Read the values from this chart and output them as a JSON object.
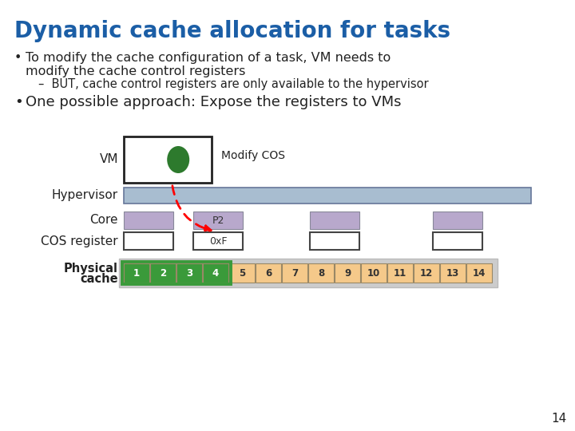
{
  "title": "Dynamic cache allocation for tasks",
  "title_color": "#1B5EA6",
  "title_fontsize": 20,
  "bullet1_line1": "To modify the cache configuration of a task, VM needs to",
  "bullet1_line2": "modify the cache control registers",
  "sub_bullet1": "BUT, cache control registers are only available to the hypervisor",
  "bullet2": "One possible approach: Expose the registers to VMs",
  "text_color": "#222222",
  "bullet_fontsize": 11.5,
  "sub_bullet_fontsize": 10.5,
  "bullet2_fontsize": 13,
  "bg_color": "#ffffff",
  "hypervisor_color": "#A8BDD0",
  "core_color": "#B8A8CC",
  "cos_color": "#ffffff",
  "vm_box_color": "#ffffff",
  "circle_color": "#2D7A2D",
  "physical_cache_color": "#F5C98A",
  "physical_cache_green": "#3A9A3A",
  "gray_bg": "#cccccc",
  "page_number": "14",
  "cache_cells": [
    "1",
    "2",
    "3",
    "4",
    "5",
    "6",
    "7",
    "8",
    "9",
    "10",
    "11",
    "12",
    "13",
    "14"
  ],
  "green_cells": [
    0,
    1,
    2,
    3
  ]
}
